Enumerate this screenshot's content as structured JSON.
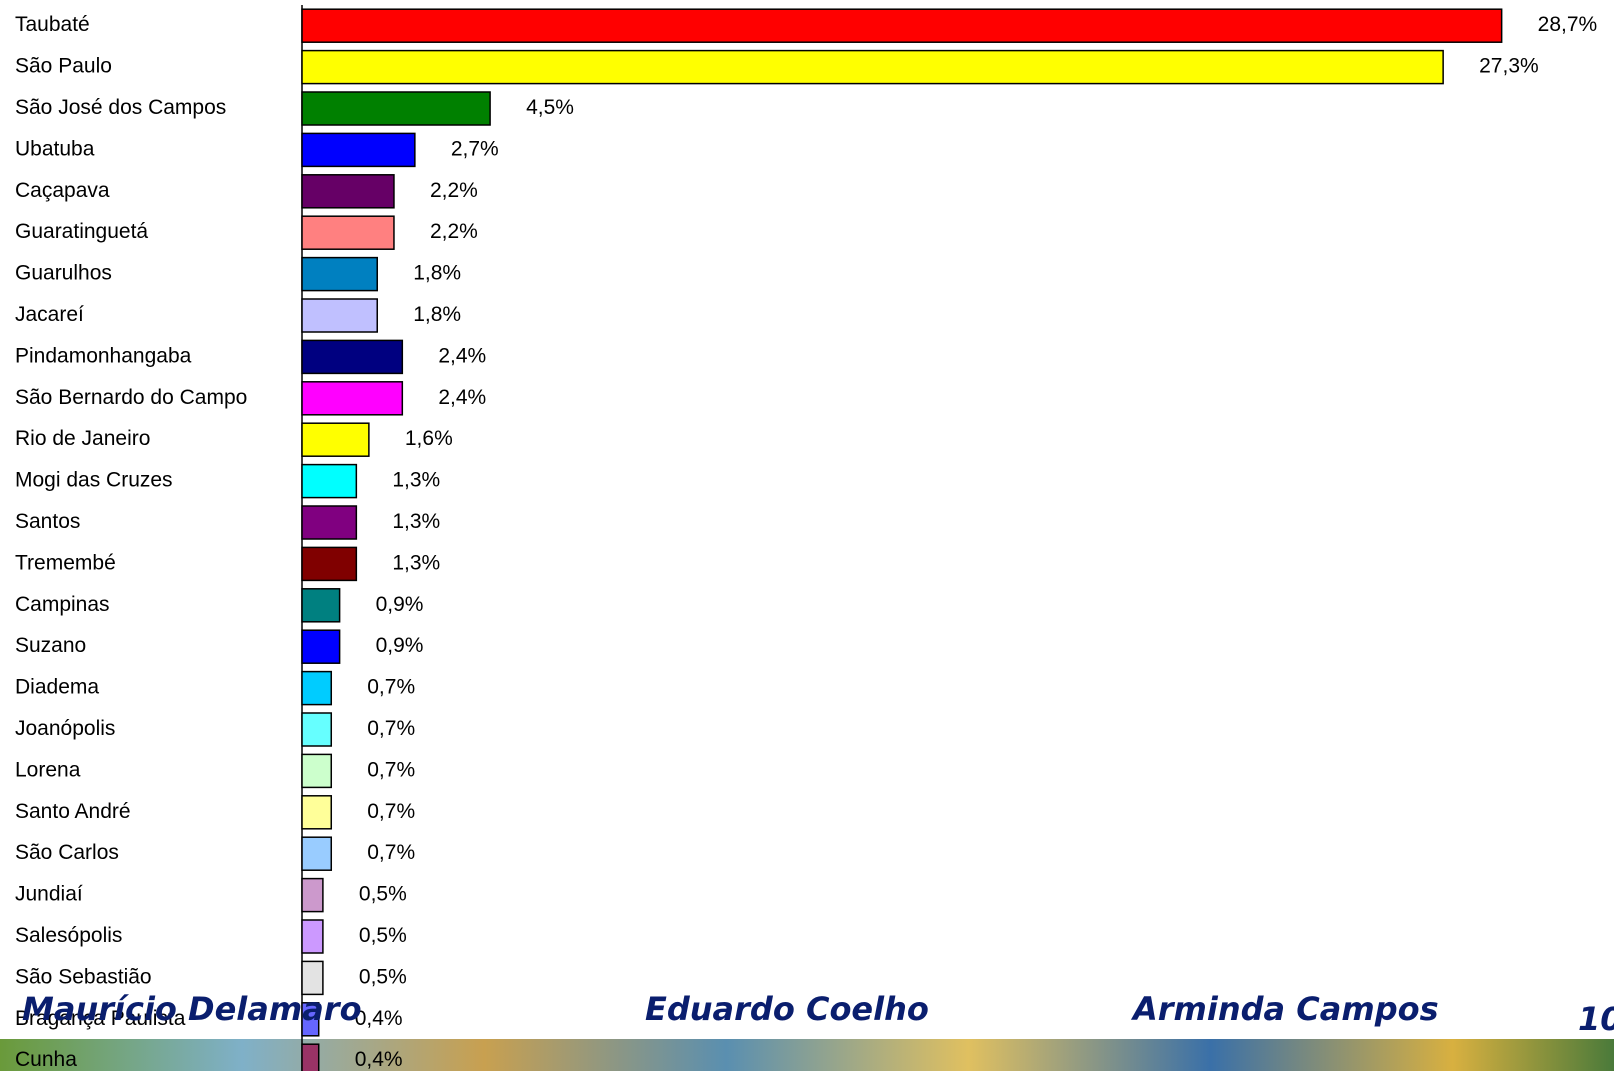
{
  "chart_data": {
    "type": "barh",
    "categories": [
      "Taubaté",
      "São Paulo",
      "São José dos Campos",
      "Ubatuba",
      "Caçapava",
      "Guaratinguetá",
      "Guarulhos",
      "Jacareí",
      "Pindamonhangaba",
      "São Bernardo do Campo",
      "Rio de Janeiro",
      "Mogi das Cruzes",
      "Santos",
      "Tremembé",
      "Campinas",
      "Suzano",
      "Diadema",
      "Joanópolis",
      "Lorena",
      "Santo André",
      "São Carlos",
      "Jundiaí",
      "Salesópolis",
      "São Sebastião",
      "Bragança Paulista",
      "Cunha"
    ],
    "values": [
      28.7,
      27.3,
      4.5,
      2.7,
      2.2,
      2.2,
      1.8,
      1.8,
      2.4,
      2.4,
      1.6,
      1.3,
      1.3,
      1.3,
      0.9,
      0.9,
      0.7,
      0.7,
      0.7,
      0.7,
      0.7,
      0.5,
      0.5,
      0.5,
      0.4,
      0.4
    ],
    "value_labels": [
      "28,7%",
      "27,3%",
      "4,5%",
      "2,7%",
      "2,2%",
      "2,2%",
      "1,8%",
      "1,8%",
      "2,4%",
      "2,4%",
      "1,6%",
      "1,3%",
      "1,3%",
      "1,3%",
      "0,9%",
      "0,9%",
      "0,7%",
      "0,7%",
      "0,7%",
      "0,7%",
      "0,7%",
      "0,5%",
      "0,5%",
      "0,5%",
      "0,4%",
      "0,4%"
    ],
    "colors": [
      "#ff0000",
      "#ffff00",
      "#008000",
      "#0000ff",
      "#660066",
      "#ff8080",
      "#0080c0",
      "#c0c0ff",
      "#000080",
      "#ff00ff",
      "#ffff00",
      "#00ffff",
      "#800080",
      "#800000",
      "#008080",
      "#0000ff",
      "#00ccff",
      "#66ffff",
      "#ccffcc",
      "#ffff99",
      "#99ccff",
      "#cc99cc",
      "#cc99ff",
      "#e3e3e3",
      "#6666ff",
      "#993366"
    ]
  },
  "footer": [
    "Maurício Delamaro",
    "Eduardo Coelho",
    "Arminda Campos",
    "10"
  ]
}
